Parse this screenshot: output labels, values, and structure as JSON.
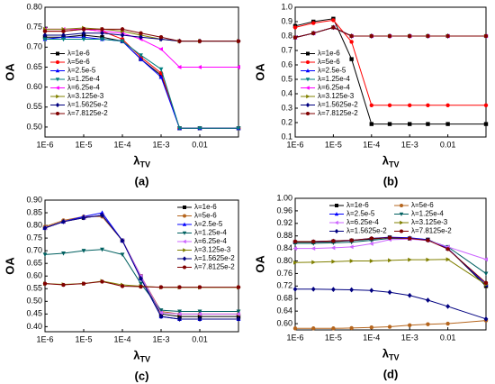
{
  "chart_data": [
    {
      "type": "line",
      "caption": "(a)",
      "y_label": "OA",
      "x_label": "λ",
      "x_label_sub": "TV",
      "log_x": true,
      "legend": "center left",
      "legend_columns": 1,
      "x": [
        1e-06,
        3e-06,
        1e-05,
        3e-05,
        0.0001,
        0.0003,
        0.001,
        0.003,
        0.01,
        0.1
      ],
      "xlim": [
        1e-06,
        0.1
      ],
      "xticks": [
        {
          "value": 1e-06,
          "label": "1E-6"
        },
        {
          "value": 1e-05,
          "label": "1E-5"
        },
        {
          "value": 0.0001,
          "label": "1E-4"
        },
        {
          "value": 0.001,
          "label": "1E-3"
        },
        0.01
      ],
      "ylim": [
        0.475,
        0.8
      ],
      "yticks": [
        {
          "value": 0.5,
          "label": "0.50"
        },
        0.55,
        {
          "value": 0.6,
          "label": "0.60"
        },
        0.65,
        {
          "value": 0.7,
          "label": "0.70"
        },
        0.75,
        {
          "value": 0.8,
          "label": "0.80"
        }
      ],
      "series": [
        {
          "name": "λ=1e-6",
          "color": "#000000",
          "values": [
            0.725,
            0.725,
            0.73,
            0.725,
            0.715,
            0.67,
            0.63,
            0.497,
            0.497,
            0.497
          ]
        },
        {
          "name": "λ=5e-6",
          "color": "#ff0000",
          "values": [
            0.74,
            0.74,
            0.745,
            0.74,
            0.72,
            0.675,
            0.635,
            0.497,
            0.497,
            0.497
          ]
        },
        {
          "name": "λ=2.5e-5",
          "color": "#0000ff",
          "values": [
            0.72,
            0.725,
            0.725,
            0.72,
            0.715,
            0.67,
            0.625,
            0.497,
            0.497,
            0.497
          ]
        },
        {
          "name": "λ=1.25e-4",
          "color": "#008080",
          "values": [
            0.72,
            0.72,
            0.72,
            0.72,
            0.715,
            0.68,
            0.645,
            0.497,
            0.497,
            0.497
          ]
        },
        {
          "name": "λ=6.25e-4",
          "color": "#ff00ff",
          "values": [
            0.745,
            0.745,
            0.745,
            0.74,
            0.735,
            0.72,
            0.695,
            0.65,
            0.65,
            0.65
          ]
        },
        {
          "name": "λ=3.125e-3",
          "color": "#808000",
          "values": [
            0.745,
            0.745,
            0.748,
            0.745,
            0.74,
            0.73,
            0.72,
            0.715,
            0.715,
            0.715
          ]
        },
        {
          "name": "λ=1.5625e-2",
          "color": "#000080",
          "values": [
            0.73,
            0.73,
            0.735,
            0.735,
            0.73,
            0.725,
            0.72,
            0.715,
            0.715,
            0.715
          ]
        },
        {
          "name": "λ=7.8125e-2",
          "color": "#800000",
          "values": [
            0.74,
            0.74,
            0.745,
            0.745,
            0.745,
            0.735,
            0.725,
            0.715,
            0.715,
            0.715
          ]
        }
      ]
    },
    {
      "type": "line",
      "caption": "(b)",
      "y_label": "OA",
      "x_label": "λ",
      "x_label_sub": "TV",
      "log_x": true,
      "legend": "center left",
      "legend_columns": 1,
      "x": [
        1e-06,
        3e-06,
        1e-05,
        3e-05,
        0.0001,
        0.0003,
        0.001,
        0.003,
        0.01,
        0.1
      ],
      "xlim": [
        1e-06,
        0.1
      ],
      "xticks": [
        {
          "value": 1e-06,
          "label": "1E-6"
        },
        {
          "value": 1e-05,
          "label": "1E-5"
        },
        {
          "value": 0.0001,
          "label": "1E-4"
        },
        {
          "value": 0.001,
          "label": "1E-3"
        },
        0.01
      ],
      "ylim": [
        0.1,
        1.0
      ],
      "yticks": [
        0.1,
        0.2,
        0.3,
        0.4,
        0.5,
        0.6,
        0.7,
        0.8,
        0.9,
        {
          "value": 1,
          "label": "1.0"
        }
      ],
      "series": [
        {
          "name": "λ=1e-6",
          "color": "#000000",
          "values": [
            0.87,
            0.9,
            0.92,
            0.64,
            0.19,
            0.19,
            0.19,
            0.19,
            0.19,
            0.19
          ]
        },
        {
          "name": "λ=5e-6",
          "color": "#ff0000",
          "values": [
            0.86,
            0.89,
            0.91,
            0.76,
            0.32,
            0.32,
            0.32,
            0.32,
            0.32,
            0.32
          ]
        },
        {
          "name": "λ=2.5e-5",
          "color": "#0000ff",
          "values": [
            0.79,
            0.82,
            0.86,
            0.8,
            0.8,
            0.8,
            0.8,
            0.8,
            0.8,
            0.8
          ]
        },
        {
          "name": "λ=1.25e-4",
          "color": "#008080",
          "values": [
            0.79,
            0.82,
            0.86,
            0.8,
            0.8,
            0.8,
            0.8,
            0.8,
            0.8,
            0.8
          ]
        },
        {
          "name": "λ=6.25e-4",
          "color": "#ff00ff",
          "values": [
            0.79,
            0.82,
            0.86,
            0.8,
            0.8,
            0.8,
            0.8,
            0.8,
            0.8,
            0.8
          ]
        },
        {
          "name": "λ=3.125e-3",
          "color": "#808000",
          "values": [
            0.79,
            0.82,
            0.86,
            0.8,
            0.8,
            0.8,
            0.8,
            0.8,
            0.8,
            0.8
          ]
        },
        {
          "name": "λ=1.5625e-2",
          "color": "#000080",
          "values": [
            0.79,
            0.82,
            0.86,
            0.8,
            0.8,
            0.8,
            0.8,
            0.8,
            0.8,
            0.8
          ]
        },
        {
          "name": "λ=7.8125e-2",
          "color": "#800000",
          "values": [
            0.79,
            0.82,
            0.86,
            0.8,
            0.8,
            0.8,
            0.8,
            0.8,
            0.8,
            0.8
          ]
        }
      ]
    },
    {
      "type": "line",
      "caption": "(c)",
      "y_label": "OA",
      "x_label": "λ",
      "x_label_sub": "TV",
      "log_x": true,
      "legend": "upper right",
      "legend_columns": 1,
      "x": [
        1e-06,
        3e-06,
        1e-05,
        3e-05,
        0.0001,
        0.0003,
        0.001,
        0.003,
        0.01,
        0.1
      ],
      "xlim": [
        1e-06,
        0.1
      ],
      "xticks": [
        {
          "value": 1e-06,
          "label": "1E-6"
        },
        {
          "value": 1e-05,
          "label": "1E-5"
        },
        {
          "value": 0.0001,
          "label": "1E-4"
        },
        {
          "value": 0.001,
          "label": "1E-3"
        },
        0.01
      ],
      "ylim": [
        0.38,
        0.9
      ],
      "yticks": [
        {
          "value": 0.4,
          "label": "0.40"
        },
        0.45,
        {
          "value": 0.5,
          "label": "0.50"
        },
        0.55,
        {
          "value": 0.6,
          "label": "0.60"
        },
        0.65,
        {
          "value": 0.7,
          "label": "0.70"
        },
        0.75,
        {
          "value": 0.8,
          "label": "0.80"
        },
        0.85,
        {
          "value": 0.9,
          "label": "0.90"
        }
      ],
      "series": [
        {
          "name": "λ=1e-6",
          "color": "#000000",
          "values": [
            0.79,
            0.815,
            0.83,
            0.84,
            0.74,
            0.6,
            0.45,
            0.44,
            0.44,
            0.44
          ]
        },
        {
          "name": "λ=5e-6",
          "color": "#b5651d",
          "values": [
            0.795,
            0.82,
            0.835,
            0.835,
            0.74,
            0.6,
            0.46,
            0.45,
            0.45,
            0.45
          ]
        },
        {
          "name": "λ=2.5e-5",
          "color": "#0000ff",
          "values": [
            0.79,
            0.815,
            0.835,
            0.85,
            0.74,
            0.59,
            0.44,
            0.43,
            0.43,
            0.43
          ]
        },
        {
          "name": "λ=1.25e-4",
          "color": "#006060",
          "values": [
            0.685,
            0.69,
            0.7,
            0.705,
            0.685,
            0.57,
            0.465,
            0.46,
            0.46,
            0.46
          ]
        },
        {
          "name": "λ=6.25e-4",
          "color": "#cc66ff",
          "values": [
            0.79,
            0.815,
            0.83,
            0.84,
            0.74,
            0.6,
            0.455,
            0.45,
            0.45,
            0.45
          ]
        },
        {
          "name": "λ=3.125e-3",
          "color": "#808000",
          "values": [
            0.57,
            0.567,
            0.57,
            0.58,
            0.565,
            0.56,
            0.555,
            0.555,
            0.555,
            0.555
          ]
        },
        {
          "name": "λ=1.5625e-2",
          "color": "#000080",
          "values": [
            0.79,
            0.815,
            0.83,
            0.84,
            0.74,
            0.59,
            0.44,
            0.43,
            0.43,
            0.43
          ]
        },
        {
          "name": "λ=7.8125e-2",
          "color": "#800000",
          "values": [
            0.57,
            0.565,
            0.57,
            0.578,
            0.56,
            0.558,
            0.556,
            0.556,
            0.556,
            0.556
          ]
        }
      ]
    },
    {
      "type": "line",
      "caption": "(d)",
      "y_label": "OA",
      "x_label": "λ",
      "x_label_sub": "TV",
      "log_x": true,
      "legend": "upper center",
      "legend_columns": 2,
      "x": [
        1e-06,
        3e-06,
        1e-05,
        3e-05,
        0.0001,
        0.0003,
        0.001,
        0.003,
        0.01,
        0.1
      ],
      "xlim": [
        1e-06,
        0.1
      ],
      "xticks": [
        {
          "value": 1e-06,
          "label": "1E-6"
        },
        {
          "value": 1e-05,
          "label": "1E-5"
        },
        {
          "value": 0.0001,
          "label": "1E-4"
        },
        {
          "value": 0.001,
          "label": "1E-3"
        },
        0.01
      ],
      "ylim": [
        0.58,
        1.0
      ],
      "yticks": [
        {
          "value": 0.6,
          "label": "0.60"
        },
        0.64,
        0.68,
        0.72,
        0.76,
        {
          "value": 0.8,
          "label": "0.80"
        },
        0.84,
        0.88,
        0.92,
        0.96,
        {
          "value": 1,
          "label": "1.00"
        }
      ],
      "series": [
        {
          "name": "λ=1e-6",
          "color": "#000000",
          "values": [
            0.86,
            0.86,
            0.862,
            0.865,
            0.87,
            0.875,
            0.872,
            0.868,
            0.84,
            0.72
          ]
        },
        {
          "name": "λ=5e-6",
          "color": "#b5651d",
          "values": [
            0.585,
            0.585,
            0.585,
            0.586,
            0.588,
            0.59,
            0.595,
            0.598,
            0.6,
            0.61
          ]
        },
        {
          "name": "λ=2.5e-5",
          "color": "#0000ff",
          "values": [
            0.862,
            0.862,
            0.864,
            0.866,
            0.872,
            0.876,
            0.874,
            0.868,
            0.84,
            0.725
          ]
        },
        {
          "name": "λ=1.25e-4",
          "color": "#006060",
          "values": [
            0.856,
            0.856,
            0.858,
            0.86,
            0.866,
            0.872,
            0.872,
            0.866,
            0.845,
            0.76
          ]
        },
        {
          "name": "λ=6.25e-4",
          "color": "#cc66ff",
          "values": [
            0.84,
            0.84,
            0.842,
            0.845,
            0.855,
            0.868,
            0.87,
            0.865,
            0.845,
            0.805
          ]
        },
        {
          "name": "λ=3.125e-3",
          "color": "#808000",
          "values": [
            0.795,
            0.796,
            0.798,
            0.8,
            0.8,
            0.802,
            0.804,
            0.804,
            0.805,
            0.725
          ]
        },
        {
          "name": "λ=1.5625e-2",
          "color": "#000080",
          "values": [
            0.71,
            0.71,
            0.709,
            0.708,
            0.706,
            0.7,
            0.69,
            0.675,
            0.655,
            0.615
          ]
        },
        {
          "name": "λ=7.8125e-2",
          "color": "#800000",
          "values": [
            0.862,
            0.862,
            0.864,
            0.866,
            0.872,
            0.874,
            0.872,
            0.866,
            0.838,
            0.73
          ]
        }
      ]
    }
  ]
}
